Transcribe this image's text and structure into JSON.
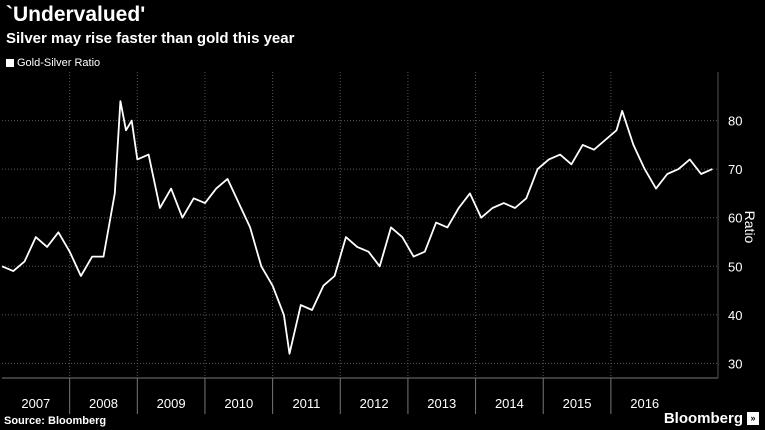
{
  "header": {
    "title": "`Undervalued'",
    "subtitle": "Silver may rise faster than gold this year"
  },
  "legend": {
    "label": "Gold-Silver Ratio",
    "color": "#ffffff"
  },
  "footer": {
    "source": "Source: Bloomberg",
    "brand": "Bloomberg",
    "brand_mark": "»"
  },
  "colors": {
    "background": "#000000",
    "line": "#ffffff",
    "grid": "#555555"
  },
  "chart_data": {
    "type": "line",
    "title": "`Undervalued'",
    "subtitle": "Silver may rise faster than gold this year",
    "ylabel": "Ratio",
    "ylim": [
      27,
      90
    ],
    "y_ticks": [
      30,
      40,
      50,
      60,
      70,
      80
    ],
    "x_tick_labels": [
      "2007",
      "2008",
      "2009",
      "2010",
      "2011",
      "2012",
      "2013",
      "2014",
      "2015",
      "2016"
    ],
    "xlim": [
      "2007-01",
      "2017-08"
    ],
    "grid": true,
    "legend_position": "top-left",
    "series": [
      {
        "name": "Gold-Silver Ratio",
        "x": [
          "2007-01",
          "2007-03",
          "2007-05",
          "2007-07",
          "2007-09",
          "2007-11",
          "2008-01",
          "2008-03",
          "2008-05",
          "2008-07",
          "2008-09",
          "2008-10",
          "2008-11",
          "2008-12",
          "2009-01",
          "2009-03",
          "2009-05",
          "2009-07",
          "2009-09",
          "2009-11",
          "2010-01",
          "2010-03",
          "2010-05",
          "2010-07",
          "2010-09",
          "2010-11",
          "2011-01",
          "2011-03",
          "2011-04",
          "2011-06",
          "2011-08",
          "2011-10",
          "2011-12",
          "2012-02",
          "2012-04",
          "2012-06",
          "2012-08",
          "2012-10",
          "2012-12",
          "2013-02",
          "2013-04",
          "2013-06",
          "2013-08",
          "2013-10",
          "2013-12",
          "2014-02",
          "2014-04",
          "2014-06",
          "2014-08",
          "2014-10",
          "2014-12",
          "2015-02",
          "2015-04",
          "2015-06",
          "2015-08",
          "2015-10",
          "2015-12",
          "2016-02",
          "2016-03",
          "2016-05",
          "2016-07",
          "2016-09",
          "2016-11",
          "2017-01",
          "2017-03",
          "2017-05",
          "2017-07"
        ],
        "values": [
          50,
          49,
          51,
          56,
          54,
          57,
          53,
          48,
          52,
          52,
          65,
          84,
          78,
          80,
          72,
          73,
          62,
          66,
          60,
          64,
          63,
          66,
          68,
          63,
          58,
          50,
          46,
          40,
          32,
          42,
          41,
          46,
          48,
          56,
          54,
          53,
          50,
          58,
          56,
          52,
          53,
          59,
          58,
          62,
          65,
          60,
          62,
          63,
          62,
          64,
          70,
          72,
          73,
          71,
          75,
          74,
          76,
          78,
          82,
          75,
          70,
          66,
          69,
          70,
          72,
          69,
          70
        ]
      }
    ]
  }
}
